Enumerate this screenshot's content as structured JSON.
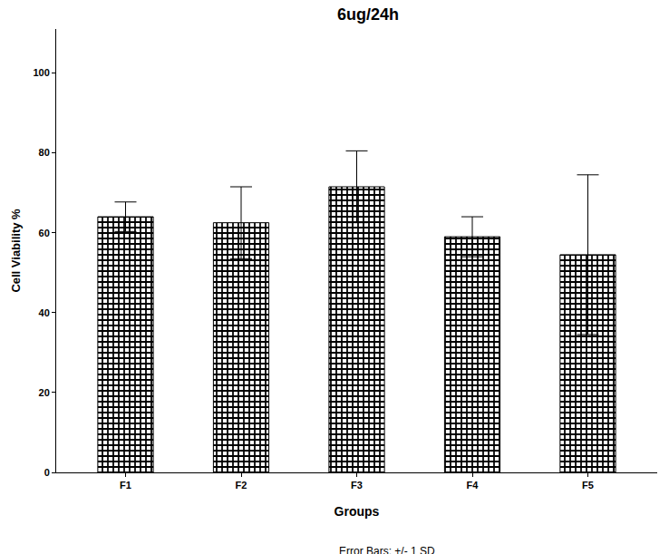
{
  "chart_data": {
    "type": "bar",
    "title": "6ug/24h",
    "x_label": "Groups",
    "y_label": "Cell Viability %",
    "categories": [
      "F1",
      "F2",
      "F3",
      "F4",
      "F5"
    ],
    "values": [
      64,
      62.5,
      71.5,
      59,
      54.5
    ],
    "errors": [
      3.7,
      9,
      9,
      5,
      20
    ],
    "color": "#000000",
    "ylim": [
      0,
      111
    ],
    "yticks": [
      0,
      20,
      40,
      60,
      80,
      100
    ],
    "grid": false,
    "footnote": "Error Bars: +/- 1 SD"
  }
}
